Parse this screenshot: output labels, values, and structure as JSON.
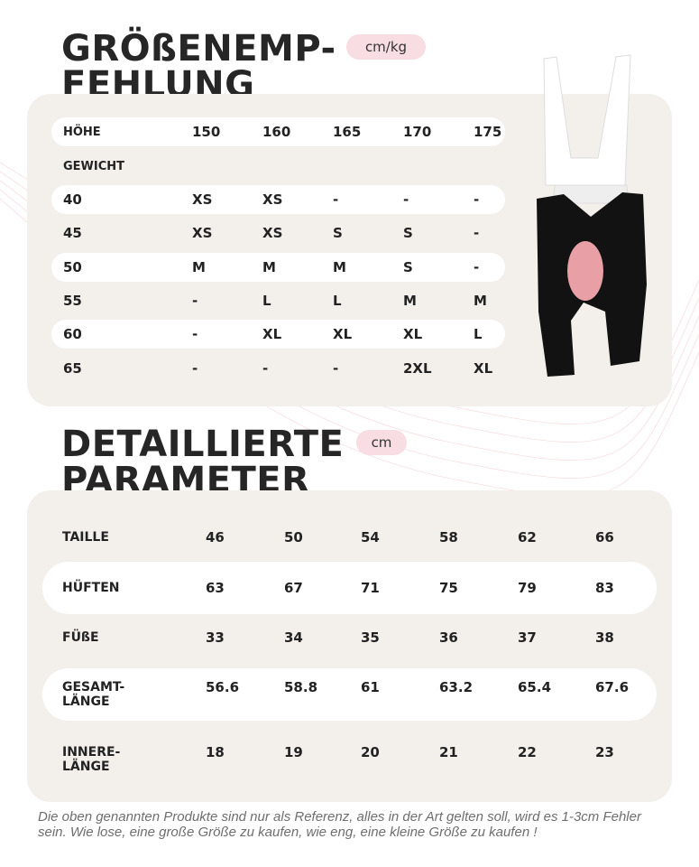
{
  "recommendation": {
    "title_line1": "GRÖßENEMP-",
    "title_line2": "FEHLUNG",
    "unit_badge": "cm/kg",
    "height_label": "HÖHE",
    "heights": [
      "150",
      "160",
      "165",
      "170",
      "175"
    ],
    "weight_label": "GEWICHT",
    "rows": [
      {
        "weight": "40",
        "sizes": [
          "XS",
          "XS",
          "-",
          "-",
          "-"
        ]
      },
      {
        "weight": "45",
        "sizes": [
          "XS",
          "XS",
          "S",
          "S",
          "-"
        ]
      },
      {
        "weight": "50",
        "sizes": [
          "M",
          "M",
          "M",
          "S",
          "-"
        ]
      },
      {
        "weight": "55",
        "sizes": [
          "-",
          "L",
          "L",
          "M",
          "M"
        ]
      },
      {
        "weight": "60",
        "sizes": [
          "-",
          "XL",
          "XL",
          "XL",
          "L"
        ]
      },
      {
        "weight": "65",
        "sizes": [
          "-",
          "-",
          "-",
          "2XL",
          "XL"
        ]
      }
    ]
  },
  "parameters": {
    "title_line1": "DETAILLIERTE",
    "title_line2": "PARAMETER",
    "unit_badge": "cm",
    "rows": [
      {
        "label": "TAILLE",
        "values": [
          "46",
          "50",
          "54",
          "58",
          "62",
          "66"
        ]
      },
      {
        "label": "HÜFTEN",
        "values": [
          "63",
          "67",
          "71",
          "75",
          "79",
          "83"
        ]
      },
      {
        "label": "FÜßE",
        "values": [
          "33",
          "34",
          "35",
          "36",
          "37",
          "38"
        ]
      },
      {
        "label": "GESAMT-\nLÄNGE",
        "values": [
          "56.6",
          "58.8",
          "61",
          "63.2",
          "65.4",
          "67.6"
        ]
      },
      {
        "label": "INNERE-\nLÄNGE",
        "values": [
          "18",
          "19",
          "20",
          "21",
          "22",
          "23"
        ]
      }
    ]
  },
  "footer_note": "Die oben genannten Produkte sind nur als Referenz, alles in der Art gelten soll, wird es 1-3cm Fehler sein. Wie lose, eine große Größe zu kaufen, wie eng, eine kleine Größe zu kaufen !",
  "colors": {
    "accent_pink": "#f8dde3",
    "panel": "#f3f0ec",
    "chamois": "#e8a0a6"
  }
}
